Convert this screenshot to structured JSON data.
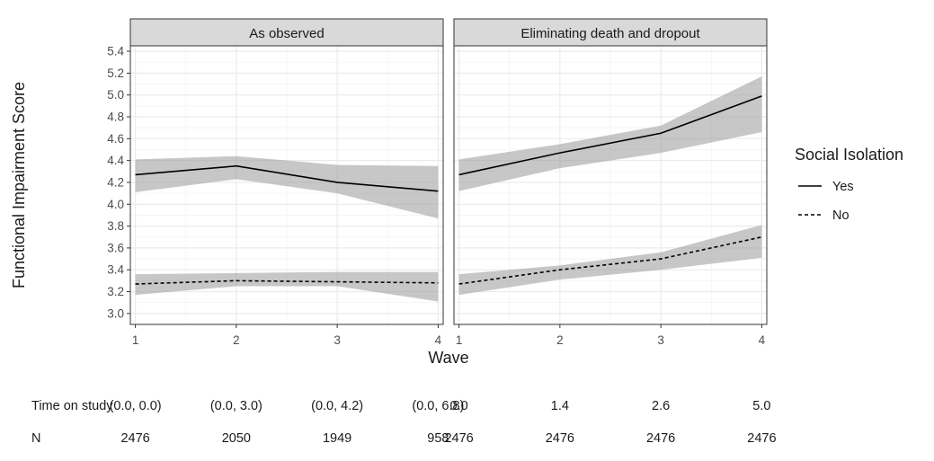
{
  "chart_data": {
    "type": "line",
    "ylabel": "Functional Impairment Score",
    "xlabel": "Wave",
    "x": [
      1,
      2,
      3,
      4
    ],
    "xlim": [
      0.95,
      4.05
    ],
    "ylim": [
      2.9,
      5.45
    ],
    "yticks": [
      3.0,
      3.2,
      3.4,
      3.6,
      3.8,
      4.0,
      4.2,
      4.4,
      4.6,
      4.8,
      5.0,
      5.2,
      5.4
    ],
    "ytick_labels": [
      "3.0",
      "3.2",
      "3.4",
      "3.6",
      "3.8",
      "4.0",
      "4.2",
      "4.4",
      "4.6",
      "4.8",
      "5.0",
      "5.2",
      "5.4"
    ],
    "xtick_labels": [
      "1",
      "2",
      "3",
      "4"
    ],
    "grid": true,
    "legend": {
      "title": "Social Isolation",
      "placement": "right",
      "entries": [
        {
          "label": "Yes",
          "linestyle": "solid"
        },
        {
          "label": "No",
          "linestyle": "dashed"
        }
      ]
    },
    "colors": {
      "line": "#000000",
      "ribbon": "#999999",
      "strip": "#d9d9d9",
      "grid": "#ebebeb"
    },
    "panels": [
      {
        "title": "As observed",
        "series": [
          {
            "name": "Yes",
            "linestyle": "solid",
            "values": [
              4.27,
              4.35,
              4.2,
              4.12
            ],
            "lower": [
              4.11,
              4.23,
              4.1,
              3.87
            ],
            "upper": [
              4.41,
              4.44,
              4.36,
              4.35
            ]
          },
          {
            "name": "No",
            "linestyle": "dashed",
            "values": [
              3.27,
              3.3,
              3.29,
              3.28
            ],
            "lower": [
              3.17,
              3.25,
              3.25,
              3.11
            ],
            "upper": [
              3.36,
              3.37,
              3.38,
              3.38
            ]
          }
        ],
        "time_on_study": [
          "(0.0, 0.0)",
          "(0.0, 3.0)",
          "(0.0, 4.2)",
          "(0.0, 6.8)"
        ],
        "n": [
          "2476",
          "2050",
          "1949",
          "958"
        ]
      },
      {
        "title": "Eliminating death and dropout",
        "series": [
          {
            "name": "Yes",
            "linestyle": "solid",
            "values": [
              4.27,
              4.47,
              4.65,
              4.99
            ],
            "lower": [
              4.12,
              4.33,
              4.47,
              4.66
            ],
            "upper": [
              4.41,
              4.55,
              4.72,
              5.17
            ]
          },
          {
            "name": "No",
            "linestyle": "dashed",
            "values": [
              3.27,
              3.4,
              3.5,
              3.7
            ],
            "lower": [
              3.17,
              3.31,
              3.4,
              3.51
            ],
            "upper": [
              3.36,
              3.44,
              3.56,
              3.81
            ]
          }
        ],
        "time_on_study": [
          "0.0",
          "1.4",
          "2.6",
          "5.0"
        ],
        "n": [
          "2476",
          "2476",
          "2476",
          "2476"
        ]
      }
    ],
    "table_row_labels": {
      "time": "Time on study",
      "n": "N"
    }
  }
}
